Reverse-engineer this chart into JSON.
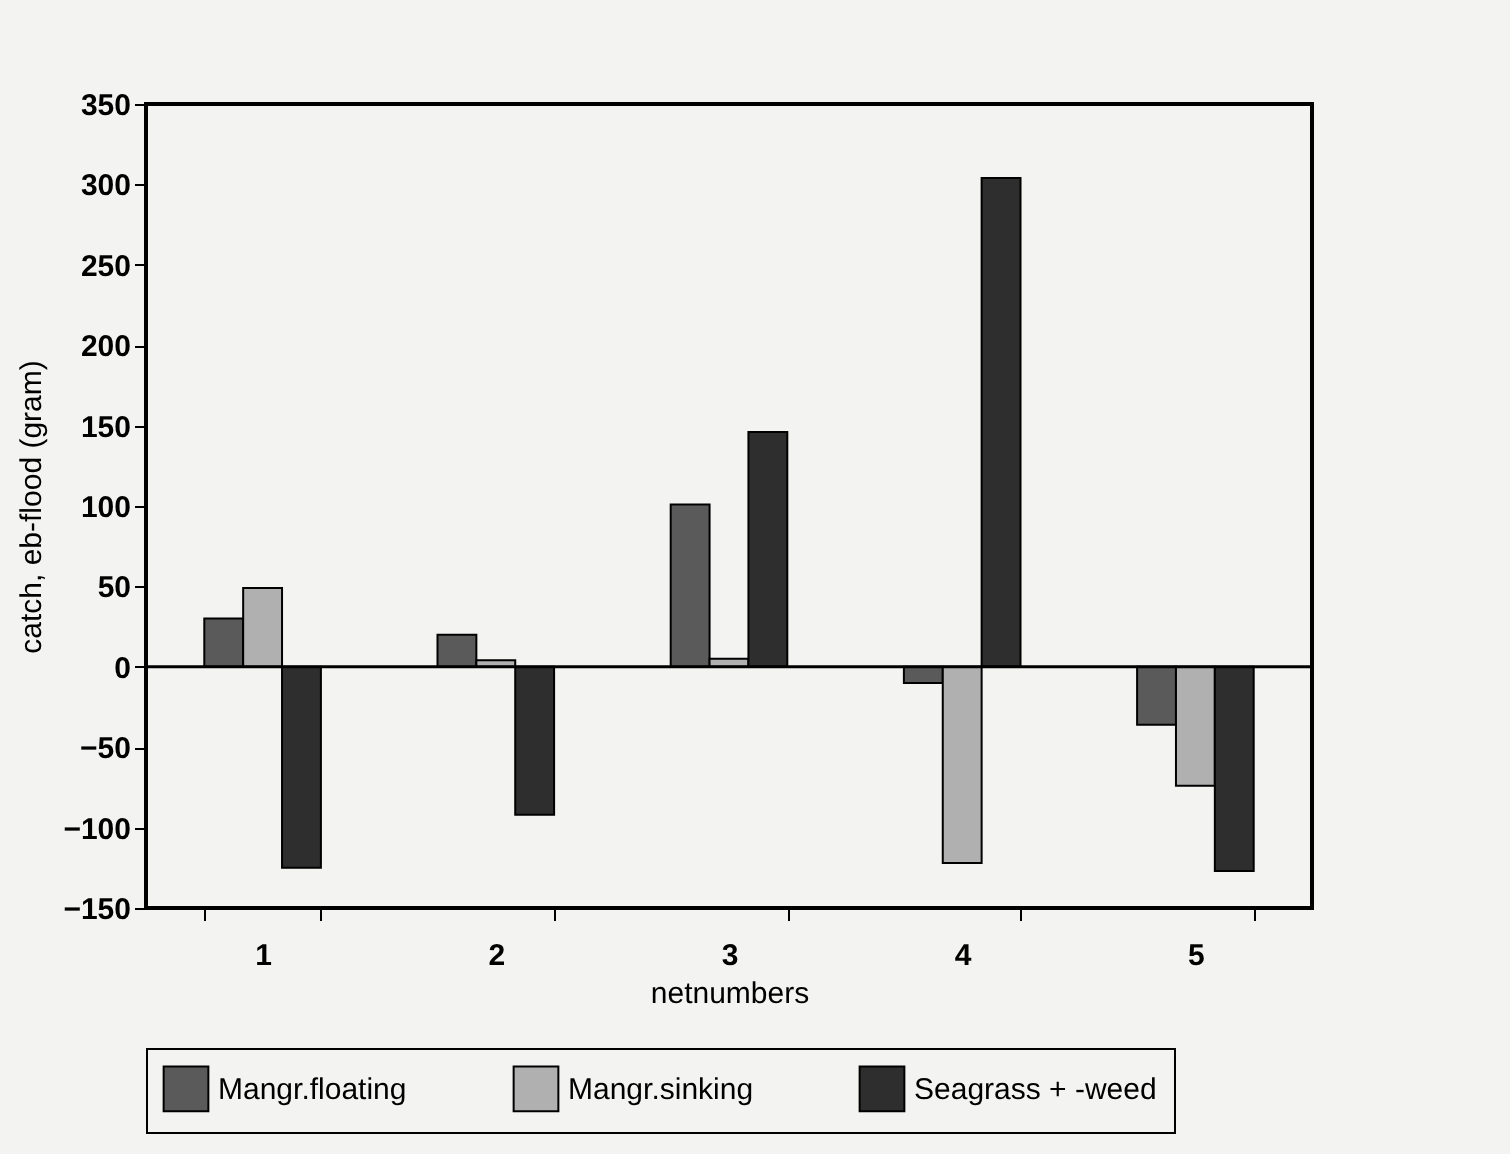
{
  "chart_data": {
    "type": "bar",
    "xlabel": "netnumbers",
    "ylabel": "catch, eb-flood (gram)",
    "categories": [
      "1",
      "2",
      "3",
      "4",
      "5"
    ],
    "series": [
      {
        "name": "Mangr.floating",
        "color": "#5a5a5a",
        "values": [
          30,
          20,
          101,
          -10,
          -36
        ]
      },
      {
        "name": "Mangr.sinking",
        "color": "#b0b0b0",
        "values": [
          49,
          4,
          5,
          -122,
          -74
        ]
      },
      {
        "name": "Seagrass + -weed",
        "color": "#2e2e2e",
        "values": [
          -125,
          -92,
          146,
          304,
          -127
        ]
      }
    ],
    "ylim": [
      -150,
      350
    ],
    "yticks": [
      -150,
      -100,
      -50,
      0,
      50,
      100,
      150,
      200,
      250,
      300,
      350
    ],
    "legend": "bottom"
  }
}
